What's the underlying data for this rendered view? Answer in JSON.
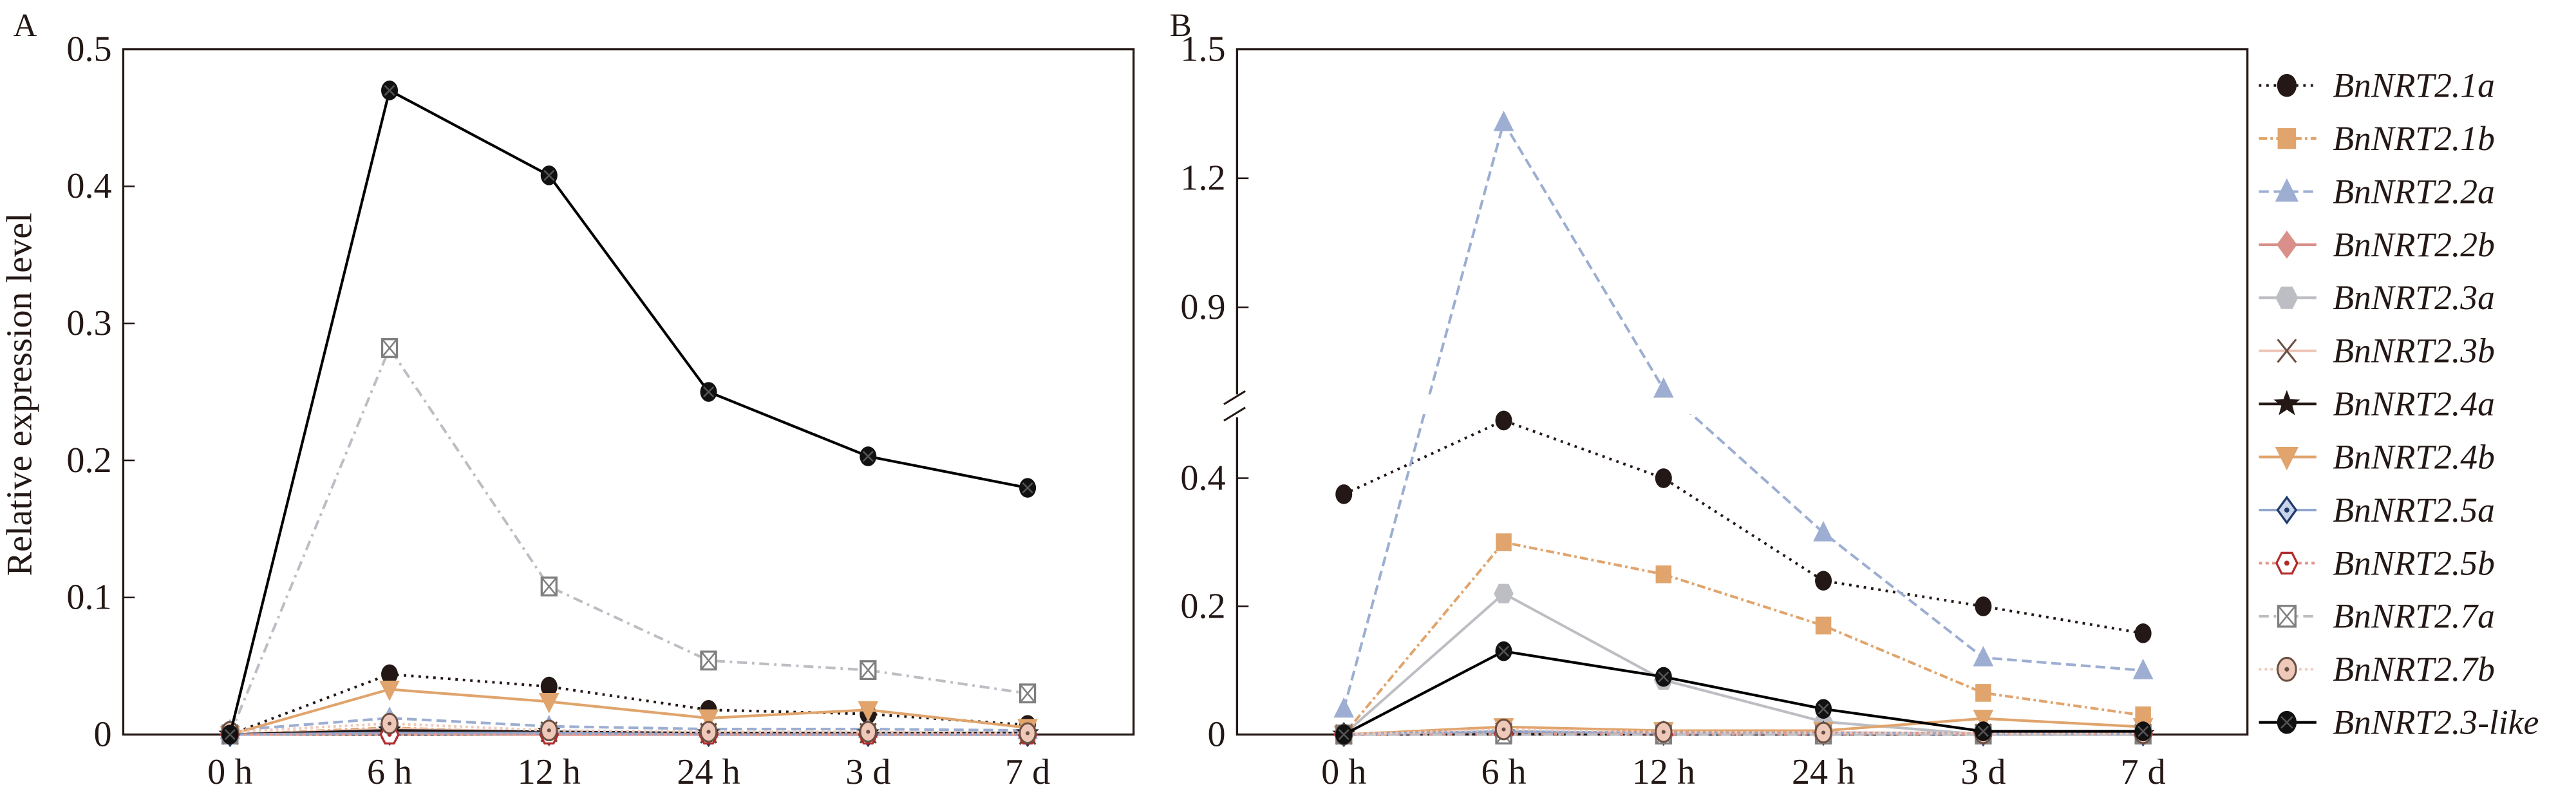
{
  "chart_data": [
    {
      "panel": "A",
      "type": "line",
      "ylabel": "Relative expression level",
      "ylim": [
        0,
        0.5
      ],
      "yticks": [
        "0",
        "0.1",
        "0.2",
        "0.3",
        "0.4",
        "0.5"
      ],
      "categories": [
        "0 h",
        "6 h",
        "12 h",
        "24 h",
        "3 d",
        "7 d"
      ],
      "series": [
        {
          "name": "BnNRT2.1a",
          "values": [
            0,
            0.044,
            0.035,
            0.018,
            0.015,
            0.007
          ]
        },
        {
          "name": "BnNRT2.1b",
          "values": [
            0,
            0.005,
            0.001,
            0.001,
            0.001,
            0
          ]
        },
        {
          "name": "BnNRT2.2a",
          "values": [
            0.003,
            0.012,
            0.006,
            0.004,
            0.004,
            0.003
          ]
        },
        {
          "name": "BnNRT2.2b",
          "values": [
            0,
            0.001,
            0,
            0,
            0,
            0
          ]
        },
        {
          "name": "BnNRT2.3a",
          "values": [
            0,
            0.002,
            0.001,
            0,
            0,
            0
          ]
        },
        {
          "name": "BnNRT2.3b",
          "values": [
            0,
            0.004,
            0.002,
            0.001,
            0.001,
            0
          ]
        },
        {
          "name": "BnNRT2.4a",
          "values": [
            0,
            0.003,
            0.002,
            0.001,
            0.001,
            0.001
          ]
        },
        {
          "name": "BnNRT2.4b",
          "values": [
            0,
            0.033,
            0.024,
            0.012,
            0.018,
            0.005
          ]
        },
        {
          "name": "BnNRT2.5a",
          "values": [
            0,
            0.001,
            0.001,
            0,
            0,
            0
          ]
        },
        {
          "name": "BnNRT2.5b",
          "values": [
            0,
            0,
            0,
            0,
            0,
            0
          ]
        },
        {
          "name": "BnNRT2.7a",
          "values": [
            0,
            0.282,
            0.108,
            0.054,
            0.047,
            0.03
          ]
        },
        {
          "name": "BnNRT2.7b",
          "values": [
            0.002,
            0.008,
            0.003,
            0.002,
            0.002,
            0.001
          ]
        },
        {
          "name": "BnNRT2.3-like",
          "values": [
            0,
            0.47,
            0.408,
            0.25,
            0.203,
            0.18
          ]
        }
      ]
    },
    {
      "panel": "B",
      "type": "line",
      "ylim": [
        0,
        1.5
      ],
      "axis_break": [
        0.5,
        0.65
      ],
      "yticks": [
        "0",
        "0.2",
        "0.4",
        "0.9",
        "1.2",
        "1.5"
      ],
      "categories": [
        "0 h",
        "6 h",
        "12 h",
        "24 h",
        "3 d",
        "7 d"
      ],
      "legend": "right",
      "series": [
        {
          "name": "BnNRT2.1a",
          "values": [
            0.375,
            0.49,
            0.4,
            0.24,
            0.2,
            0.158
          ]
        },
        {
          "name": "BnNRT2.1b",
          "values": [
            0,
            0.3,
            0.25,
            0.17,
            0.065,
            0.03
          ]
        },
        {
          "name": "BnNRT2.2a",
          "values": [
            0.04,
            1.33,
            0.71,
            0.315,
            0.12,
            0.1
          ]
        },
        {
          "name": "BnNRT2.2b",
          "values": [
            0,
            0.004,
            0.003,
            0.003,
            0.002,
            0.002
          ]
        },
        {
          "name": "BnNRT2.3a",
          "values": [
            0,
            0.22,
            0.085,
            0.02,
            0,
            0
          ]
        },
        {
          "name": "BnNRT2.3b",
          "values": [
            0,
            0.003,
            0.002,
            0.002,
            0.001,
            0.001
          ]
        },
        {
          "name": "BnNRT2.4a",
          "values": [
            0,
            0.002,
            0.001,
            0.001,
            0.001,
            0.001
          ]
        },
        {
          "name": "BnNRT2.4b",
          "values": [
            0,
            0.012,
            0.006,
            0.006,
            0.025,
            0.012
          ]
        },
        {
          "name": "BnNRT2.5a",
          "values": [
            0,
            0.005,
            0.002,
            0.002,
            0.001,
            0.001
          ]
        },
        {
          "name": "BnNRT2.5b",
          "values": [
            0,
            0.001,
            0.001,
            0.001,
            0.001,
            0.001
          ]
        },
        {
          "name": "BnNRT2.7a",
          "values": [
            0,
            0,
            0,
            0,
            0,
            0
          ]
        },
        {
          "name": "BnNRT2.7b",
          "values": [
            0,
            0.008,
            0.004,
            0.003,
            0.002,
            0.002
          ]
        },
        {
          "name": "BnNRT2.3-like",
          "values": [
            0,
            0.13,
            0.09,
            0.04,
            0.005,
            0.005
          ]
        }
      ]
    }
  ],
  "styles": {
    "BnNRT2.1a": {
      "color": "#231815",
      "marker": "circle",
      "dash": "1.5,3"
    },
    "BnNRT2.1b": {
      "color": "#E0A46C",
      "marker": "square",
      "dash": "5,2,1.5,2"
    },
    "BnNRT2.2a": {
      "color": "#9DAED2",
      "marker": "triangle",
      "dash": "6,3"
    },
    "BnNRT2.2b": {
      "color": "#D9908A",
      "marker": "diamond",
      "dash": ""
    },
    "BnNRT2.3a": {
      "color": "#BDBEC3",
      "marker": "hexagon",
      "dash": ""
    },
    "BnNRT2.3b": {
      "color": "#EBC3B5",
      "marker": "x",
      "dash": "",
      "markerColor": "#6B4F43"
    },
    "BnNRT2.4a": {
      "color": "#231815",
      "marker": "star",
      "dash": ""
    },
    "BnNRT2.4b": {
      "color": "#E0A46C",
      "marker": "triangle-down",
      "dash": ""
    },
    "BnNRT2.5a": {
      "color": "#8FA6CF",
      "marker": "diamond-dot",
      "dash": "",
      "markerColor": "#1F3A6B"
    },
    "BnNRT2.5b": {
      "color": "#E29A8F",
      "marker": "hexagon-dot",
      "dash": "2,2",
      "markerColor": "#B22B2B"
    },
    "BnNRT2.7a": {
      "color": "#BDBEC3",
      "marker": "boxed-x",
      "dash": "6,3,1.5,3",
      "markerColor": "#7F7F7F"
    },
    "BnNRT2.7b": {
      "color": "#EEC9BA",
      "marker": "circle-dot",
      "dash": "1.5,2",
      "markerColor": "#6B4F43"
    },
    "BnNRT2.3-like": {
      "color": "#000000",
      "marker": "circle-x",
      "dash": ""
    }
  }
}
